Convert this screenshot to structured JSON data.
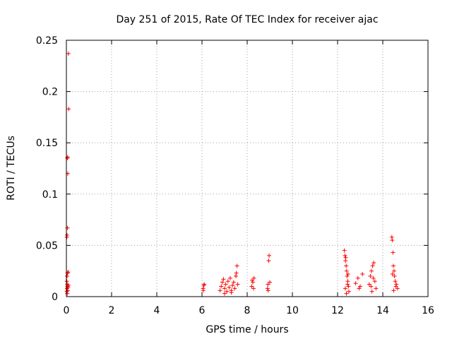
{
  "chart_data": {
    "type": "scatter",
    "title": "Day 251 of 2015, Rate Of TEC Index for receiver ajac",
    "xlabel": "GPS time / hours",
    "ylabel": "ROTI / TECUs",
    "xlim": [
      0,
      16
    ],
    "ylim": [
      0,
      0.25
    ],
    "grid": true,
    "marker": "+",
    "marker_color": "#ff0000",
    "x_ticks": [
      "0",
      "2",
      "4",
      "6",
      "8",
      "10",
      "12",
      "14",
      "16"
    ],
    "y_ticks": [
      "0",
      "0.05",
      "0.1",
      "0.15",
      "0.2",
      "0.25"
    ],
    "x_tick_values": [
      0,
      2,
      4,
      6,
      8,
      10,
      12,
      14,
      16
    ],
    "y_tick_values": [
      0,
      0.05,
      0.1,
      0.15,
      0.2,
      0.25
    ],
    "series": [
      {
        "name": "ROTI",
        "points": [
          [
            0.02,
            0.005
          ],
          [
            0.03,
            0.008
          ],
          [
            0.05,
            0.01
          ],
          [
            0.04,
            0.012
          ],
          [
            0.06,
            0.006
          ],
          [
            0.02,
            0.015
          ],
          [
            0.03,
            0.02
          ],
          [
            0.05,
            0.023
          ],
          [
            0.07,
            0.009
          ],
          [
            0.04,
            0.003
          ],
          [
            0.02,
            0.058
          ],
          [
            0.03,
            0.06
          ],
          [
            0.05,
            0.067
          ],
          [
            0.06,
            0.12
          ],
          [
            0.04,
            0.135
          ],
          [
            0.06,
            0.136
          ],
          [
            0.1,
            0.183
          ],
          [
            0.09,
            0.237
          ],
          [
            0.08,
            0.024
          ],
          [
            0.09,
            0.011
          ],
          [
            6.05,
            0.008
          ],
          [
            6.08,
            0.011
          ],
          [
            6.1,
            0.012
          ],
          [
            6.06,
            0.006
          ],
          [
            6.8,
            0.006
          ],
          [
            6.85,
            0.01
          ],
          [
            6.9,
            0.014
          ],
          [
            6.95,
            0.017
          ],
          [
            7.0,
            0.008
          ],
          [
            7.05,
            0.012
          ],
          [
            7.1,
            0.005
          ],
          [
            7.15,
            0.015
          ],
          [
            7.2,
            0.009
          ],
          [
            7.25,
            0.018
          ],
          [
            7.3,
            0.006
          ],
          [
            7.35,
            0.011
          ],
          [
            7.4,
            0.014
          ],
          [
            7.45,
            0.008
          ],
          [
            7.5,
            0.02
          ],
          [
            7.52,
            0.023
          ],
          [
            7.55,
            0.03
          ],
          [
            7.58,
            0.012
          ],
          [
            7.0,
            0.003
          ],
          [
            7.3,
            0.004
          ],
          [
            8.2,
            0.01
          ],
          [
            8.25,
            0.014
          ],
          [
            8.3,
            0.018
          ],
          [
            8.28,
            0.008
          ],
          [
            8.22,
            0.016
          ],
          [
            8.9,
            0.008
          ],
          [
            8.92,
            0.012
          ],
          [
            8.95,
            0.035
          ],
          [
            8.97,
            0.04
          ],
          [
            9.0,
            0.014
          ],
          [
            8.93,
            0.006
          ],
          [
            12.3,
            0.045
          ],
          [
            12.33,
            0.04
          ],
          [
            12.35,
            0.035
          ],
          [
            12.38,
            0.03
          ],
          [
            12.4,
            0.025
          ],
          [
            12.42,
            0.02
          ],
          [
            12.45,
            0.015
          ],
          [
            12.48,
            0.01
          ],
          [
            12.5,
            0.005
          ],
          [
            12.36,
            0.038
          ],
          [
            12.44,
            0.012
          ],
          [
            12.46,
            0.022
          ],
          [
            12.34,
            0.008
          ],
          [
            12.39,
            0.003
          ],
          [
            12.8,
            0.013
          ],
          [
            12.9,
            0.018
          ],
          [
            13.0,
            0.01
          ],
          [
            13.1,
            0.022
          ],
          [
            12.95,
            0.008
          ],
          [
            13.4,
            0.012
          ],
          [
            13.45,
            0.02
          ],
          [
            13.5,
            0.025
          ],
          [
            13.55,
            0.03
          ],
          [
            13.6,
            0.033
          ],
          [
            13.65,
            0.015
          ],
          [
            13.7,
            0.008
          ],
          [
            13.52,
            0.005
          ],
          [
            13.58,
            0.018
          ],
          [
            13.48,
            0.01
          ],
          [
            14.4,
            0.058
          ],
          [
            14.42,
            0.055
          ],
          [
            14.45,
            0.043
          ],
          [
            14.47,
            0.03
          ],
          [
            14.5,
            0.025
          ],
          [
            14.52,
            0.02
          ],
          [
            14.55,
            0.015
          ],
          [
            14.58,
            0.01
          ],
          [
            14.6,
            0.012
          ],
          [
            14.65,
            0.008
          ],
          [
            14.43,
            0.022
          ],
          [
            14.48,
            0.006
          ]
        ]
      }
    ]
  }
}
